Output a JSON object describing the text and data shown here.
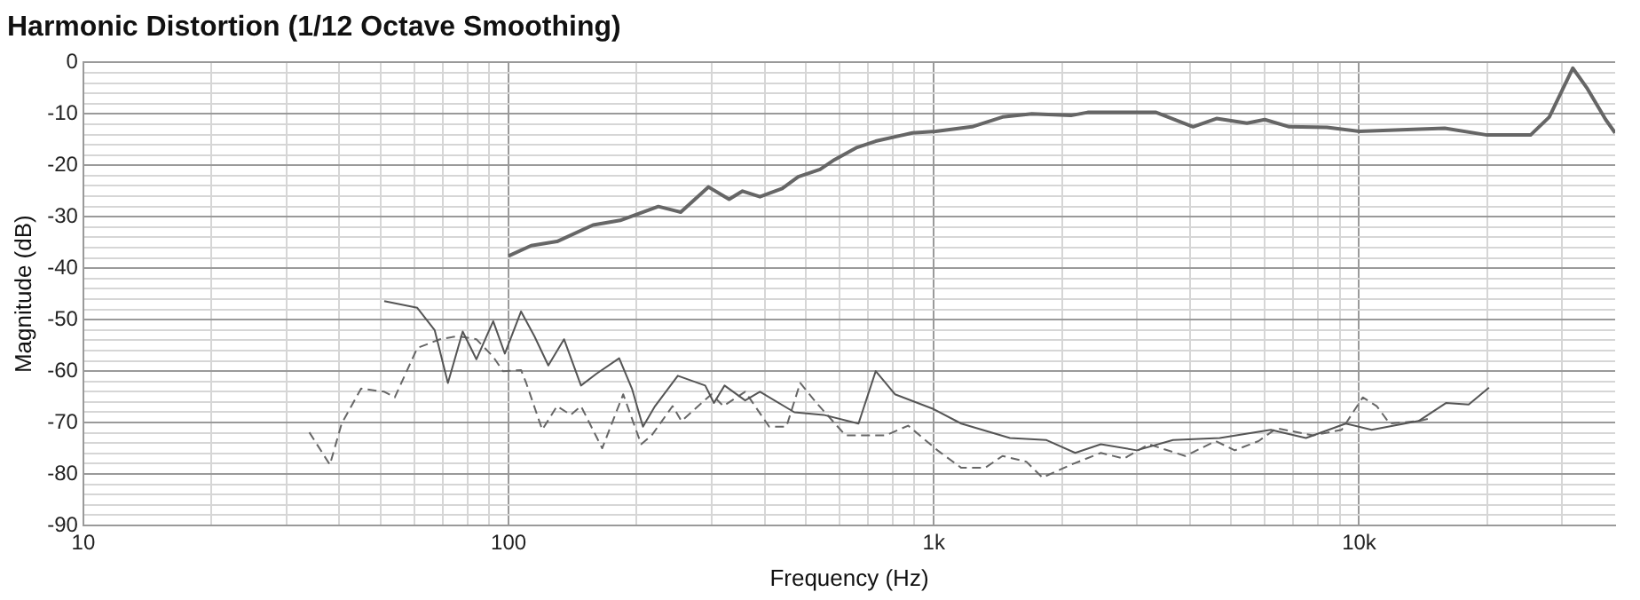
{
  "chart_data": {
    "type": "line",
    "title": "Harmonic Distortion (1/12 Octave Smoothing)",
    "xlabel": "Frequency (Hz)",
    "ylabel": "Magnitude (dB)",
    "log": "x",
    "grid": true,
    "legend": false,
    "marker": "none",
    "xlim": [
      10,
      40000
    ],
    "xticks": [
      10,
      {
        "value": 20,
        "label": null
      },
      {
        "value": 30,
        "label": null
      },
      {
        "value": 40,
        "label": null
      },
      {
        "value": 50,
        "label": null
      },
      {
        "value": 60,
        "label": null
      },
      {
        "value": 70,
        "label": null
      },
      {
        "value": 80,
        "label": null
      },
      {
        "value": 90,
        "label": null
      },
      100,
      {
        "value": 200,
        "label": null
      },
      {
        "value": 300,
        "label": null
      },
      {
        "value": 400,
        "label": null
      },
      {
        "value": 500,
        "label": null
      },
      {
        "value": 600,
        "label": null
      },
      {
        "value": 700,
        "label": null
      },
      {
        "value": 800,
        "label": null
      },
      {
        "value": 900,
        "label": null
      },
      {
        "value": 1000,
        "label": "1k"
      },
      {
        "value": 2000,
        "label": null
      },
      {
        "value": 3000,
        "label": null
      },
      {
        "value": 4000,
        "label": null
      },
      {
        "value": 5000,
        "label": null
      },
      {
        "value": 6000,
        "label": null
      },
      {
        "value": 7000,
        "label": null
      },
      {
        "value": 8000,
        "label": null
      },
      {
        "value": 9000,
        "label": null
      },
      {
        "value": 10000,
        "label": "10k"
      },
      {
        "value": 20000,
        "label": null
      },
      {
        "value": 30000,
        "label": null
      }
    ],
    "ylim": [
      -90,
      0
    ],
    "yticks": [
      -90,
      {
        "value": -88,
        "label": null
      },
      {
        "value": -86,
        "label": null
      },
      {
        "value": -84,
        "label": null
      },
      {
        "value": -82,
        "label": null
      },
      -80,
      {
        "value": -78,
        "label": null
      },
      {
        "value": -76,
        "label": null
      },
      {
        "value": -74,
        "label": null
      },
      {
        "value": -72,
        "label": null
      },
      -70,
      {
        "value": -68,
        "label": null
      },
      {
        "value": -66,
        "label": null
      },
      {
        "value": -64,
        "label": null
      },
      {
        "value": -62,
        "label": null
      },
      -60,
      {
        "value": -58,
        "label": null
      },
      {
        "value": -56,
        "label": null
      },
      {
        "value": -54,
        "label": null
      },
      {
        "value": -52,
        "label": null
      },
      -50,
      {
        "value": -48,
        "label": null
      },
      {
        "value": -46,
        "label": null
      },
      {
        "value": -44,
        "label": null
      },
      {
        "value": -42,
        "label": null
      },
      -40,
      {
        "value": -38,
        "label": null
      },
      {
        "value": -36,
        "label": null
      },
      {
        "value": -34,
        "label": null
      },
      {
        "value": -32,
        "label": null
      },
      -30,
      {
        "value": -28,
        "label": null
      },
      {
        "value": -26,
        "label": null
      },
      {
        "value": -24,
        "label": null
      },
      {
        "value": -22,
        "label": null
      },
      -20,
      {
        "value": -18,
        "label": null
      },
      {
        "value": -16,
        "label": null
      },
      {
        "value": -14,
        "label": null
      },
      {
        "value": -12,
        "label": null
      },
      -10,
      {
        "value": -8,
        "label": null
      },
      {
        "value": -6,
        "label": null
      },
      {
        "value": -4,
        "label": null
      },
      {
        "value": -2,
        "label": null
      },
      0
    ],
    "series": [
      {
        "color": "#666666",
        "line_style": "solid",
        "x": [
          100,
          113,
          130,
          158,
          183,
          225,
          254,
          295,
          330,
          355,
          390,
          440,
          480,
          540,
          584,
          660,
          730,
          890,
          1010,
          1230,
          1450,
          1700,
          2100,
          2300,
          3330,
          4070,
          4620,
          5450,
          6000,
          6850,
          8400,
          10000,
          13400,
          15900,
          20000,
          25300,
          28000,
          31800,
          34300,
          38000,
          40000
        ],
        "values": [
          -37.6,
          -35.6,
          -34.8,
          -31.6,
          -30.7,
          -28,
          -29.1,
          -24.2,
          -26.6,
          -25,
          -26.1,
          -24.5,
          -22.2,
          -20.8,
          -18.9,
          -16.5,
          -15.3,
          -13.7,
          -13.4,
          -12.5,
          -10.6,
          -10,
          -10.3,
          -9.7,
          -9.7,
          -12.5,
          -10.9,
          -11.8,
          -11.1,
          -12.5,
          -12.6,
          -13.4,
          -13,
          -12.8,
          -14.1,
          -14.1,
          -10.6,
          -1.1,
          -4.9,
          -11.1,
          -13.7
        ]
      },
      {
        "color": "#555555",
        "line_style": "solid",
        "x": [
          51,
          61,
          67,
          72,
          78,
          84,
          92,
          98,
          107,
          115,
          124,
          135,
          148,
          161,
          182,
          195,
          207,
          221,
          250,
          290,
          304,
          322,
          360,
          390,
          470,
          550,
          665,
          730,
          810,
          1000,
          1160,
          1510,
          1840,
          2150,
          2470,
          3000,
          3650,
          4700,
          6200,
          7500,
          9300,
          10700,
          13800,
          16000,
          18100,
          20200
        ],
        "values": [
          -46.4,
          -47.7,
          -52,
          -62.3,
          -52.3,
          -57.7,
          -50.3,
          -56.6,
          -48.4,
          -53.2,
          -58.9,
          -53.8,
          -62.8,
          -60.5,
          -57.5,
          -63.4,
          -70.8,
          -66.8,
          -60.9,
          -62.8,
          -66.2,
          -62.8,
          -65.7,
          -64,
          -68,
          -68.5,
          -70.2,
          -60,
          -64.5,
          -67.4,
          -70.2,
          -73,
          -73.4,
          -75.9,
          -74.2,
          -75.4,
          -73.4,
          -73,
          -71.4,
          -73,
          -70.2,
          -71.4,
          -69.7,
          -66.2,
          -66.5,
          -63.2
        ]
      },
      {
        "color": "#666666",
        "line_style": "dashed",
        "x": [
          34,
          38,
          40.5,
          45,
          51,
          54,
          61,
          69,
          76,
          84,
          92,
          97,
          107,
          110,
          120,
          130,
          140,
          148,
          166,
          186,
          205,
          217,
          243,
          255,
          300,
          320,
          360,
          410,
          450,
          485,
          530,
          620,
          770,
          870,
          1020,
          1160,
          1320,
          1450,
          1650,
          1800,
          2100,
          2470,
          2800,
          3200,
          3900,
          4600,
          5100,
          5800,
          6400,
          7800,
          9100,
          10200,
          11000,
          11800,
          13800,
          14500
        ],
        "values": [
          -71.9,
          -78.2,
          -70.2,
          -63.4,
          -64,
          -65.1,
          -55.5,
          -53.8,
          -53.2,
          -53.8,
          -57.2,
          -60,
          -59.8,
          -62.3,
          -71.4,
          -66.8,
          -68.5,
          -66.8,
          -75,
          -64.5,
          -74.2,
          -72.5,
          -66.8,
          -69.7,
          -64.5,
          -66.8,
          -64,
          -70.8,
          -70.8,
          -62.3,
          -66.2,
          -72.5,
          -72.5,
          -70.6,
          -75.4,
          -78.8,
          -78.8,
          -76.5,
          -77.6,
          -80.7,
          -78.2,
          -75.9,
          -77,
          -74.2,
          -76.5,
          -73.6,
          -75.4,
          -73.6,
          -71.1,
          -72.5,
          -71.4,
          -65.1,
          -66.8,
          -70.2,
          -69.7,
          -69.3
        ]
      }
    ]
  }
}
